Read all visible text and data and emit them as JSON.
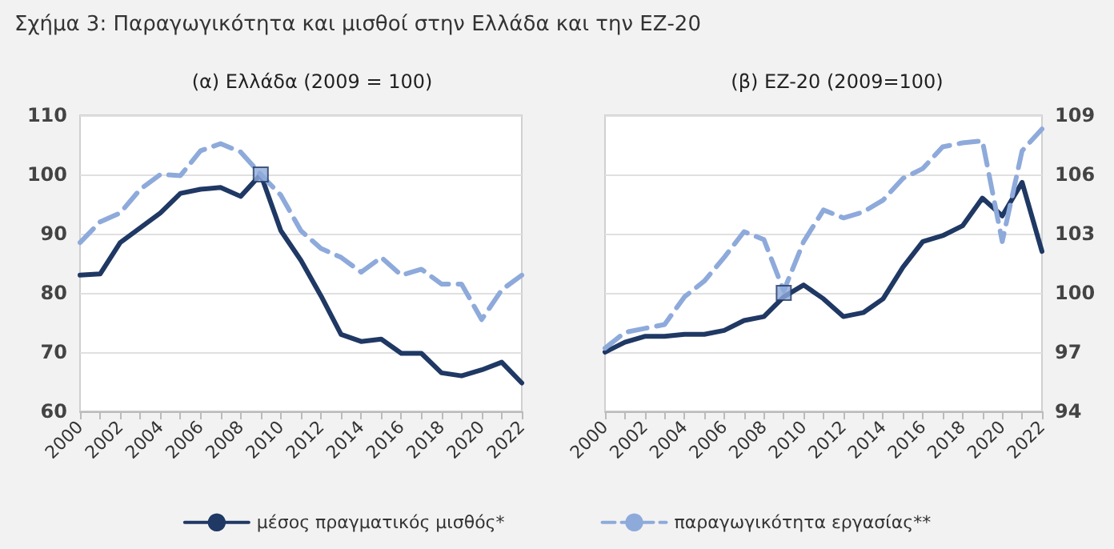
{
  "chart_data": [
    {
      "type": "line",
      "title": "Σχήμα 3: Παραγωγικότητα και μισθοί στην Ελλάδα και την ΕΖ-20",
      "subtitle": "(α) Ελλάδα (2009 = 100)",
      "x": [
        2000,
        2001,
        2002,
        2003,
        2004,
        2005,
        2006,
        2007,
        2008,
        2009,
        2010,
        2011,
        2012,
        2013,
        2014,
        2015,
        2016,
        2017,
        2018,
        2019,
        2020,
        2021,
        2022
      ],
      "xlim": [
        2000,
        2022
      ],
      "xticks": [
        2000,
        {
          "value": 2001,
          "label": null
        },
        2002,
        {
          "value": 2003,
          "label": null
        },
        2004,
        {
          "value": 2005,
          "label": null
        },
        2006,
        {
          "value": 2007,
          "label": null
        },
        2008,
        {
          "value": 2009,
          "label": null
        },
        2010,
        {
          "value": 2011,
          "label": null
        },
        2012,
        {
          "value": 2013,
          "label": null
        },
        2014,
        {
          "value": 2015,
          "label": null
        },
        2016,
        {
          "value": 2017,
          "label": null
        },
        2018,
        {
          "value": 2019,
          "label": null
        },
        2020,
        {
          "value": 2021,
          "label": null
        },
        2022
      ],
      "ylim": [
        60,
        110
      ],
      "yticks": [
        60,
        70,
        80,
        90,
        100,
        110
      ],
      "grid": "y",
      "legend": "bottom",
      "marker": "none",
      "series": [
        {
          "name": "μέσος πραγματικός μισθός*",
          "color": "#1f3864",
          "line_style": "solid",
          "values": [
            83,
            83.2,
            88.5,
            91,
            93.5,
            96.8,
            97.5,
            97.8,
            96.3,
            100,
            90.5,
            85.5,
            79.5,
            73,
            71.8,
            72.2,
            69.8,
            69.8,
            66.5,
            66,
            67,
            68.3,
            64.8
          ]
        },
        {
          "name": "παραγωγικότητα εργασίας**",
          "color": "#8eaadb",
          "line_style": "dashed",
          "values": [
            88.5,
            92,
            93.5,
            97.5,
            100,
            99.8,
            104,
            105.2,
            103.8,
            100,
            96.5,
            90.5,
            87.5,
            86,
            83.5,
            86,
            83,
            84,
            81.5,
            81.5,
            75.5,
            80.5,
            83
          ]
        },
        {
          "type": "scatter",
          "color": "#8eaadb",
          "marker": "square",
          "x": [
            2009
          ],
          "values": [
            100
          ]
        }
      ]
    },
    {
      "type": "line",
      "title": "(β) EZ-20 (2009=100)",
      "x": [
        2000,
        2001,
        2002,
        2003,
        2004,
        2005,
        2006,
        2007,
        2008,
        2009,
        2010,
        2011,
        2012,
        2013,
        2014,
        2015,
        2016,
        2017,
        2018,
        2019,
        2020,
        2021,
        2022
      ],
      "xlim": [
        2000,
        2022
      ],
      "xticks": [
        2000,
        {
          "value": 2001,
          "label": null
        },
        2002,
        {
          "value": 2003,
          "label": null
        },
        2004,
        {
          "value": 2005,
          "label": null
        },
        2006,
        {
          "value": 2007,
          "label": null
        },
        2008,
        {
          "value": 2009,
          "label": null
        },
        2010,
        {
          "value": 2011,
          "label": null
        },
        2012,
        {
          "value": 2013,
          "label": null
        },
        2014,
        {
          "value": 2015,
          "label": null
        },
        2016,
        {
          "value": 2017,
          "label": null
        },
        2018,
        {
          "value": 2019,
          "label": null
        },
        2020,
        {
          "value": 2021,
          "label": null
        },
        2022
      ],
      "ylim": [
        94,
        109
      ],
      "yticks": [
        94,
        97,
        100,
        103,
        106,
        109
      ],
      "grid": "y",
      "marker": "none",
      "series": [
        {
          "color": "#1f3864",
          "line_style": "solid",
          "values": [
            97,
            97.5,
            97.8,
            97.8,
            97.9,
            97.9,
            98.1,
            98.6,
            98.8,
            99.8,
            100.4,
            99.7,
            98.8,
            99,
            99.7,
            101.3,
            102.6,
            102.9,
            103.4,
            104.8,
            103.9,
            105.6,
            102.1
          ]
        },
        {
          "color": "#8eaadb",
          "line_style": "dashed",
          "values": [
            97.2,
            98,
            98.2,
            98.4,
            99.8,
            100.6,
            101.8,
            103.1,
            102.7,
            100.1,
            102.6,
            104.2,
            103.8,
            104.1,
            104.7,
            105.8,
            106.3,
            107.4,
            107.6,
            107.7,
            102.6,
            107.2,
            108.3
          ]
        },
        {
          "type": "scatter",
          "color": "#8eaadb",
          "marker": "square",
          "x": [
            2009
          ],
          "values": [
            100
          ]
        }
      ]
    }
  ]
}
